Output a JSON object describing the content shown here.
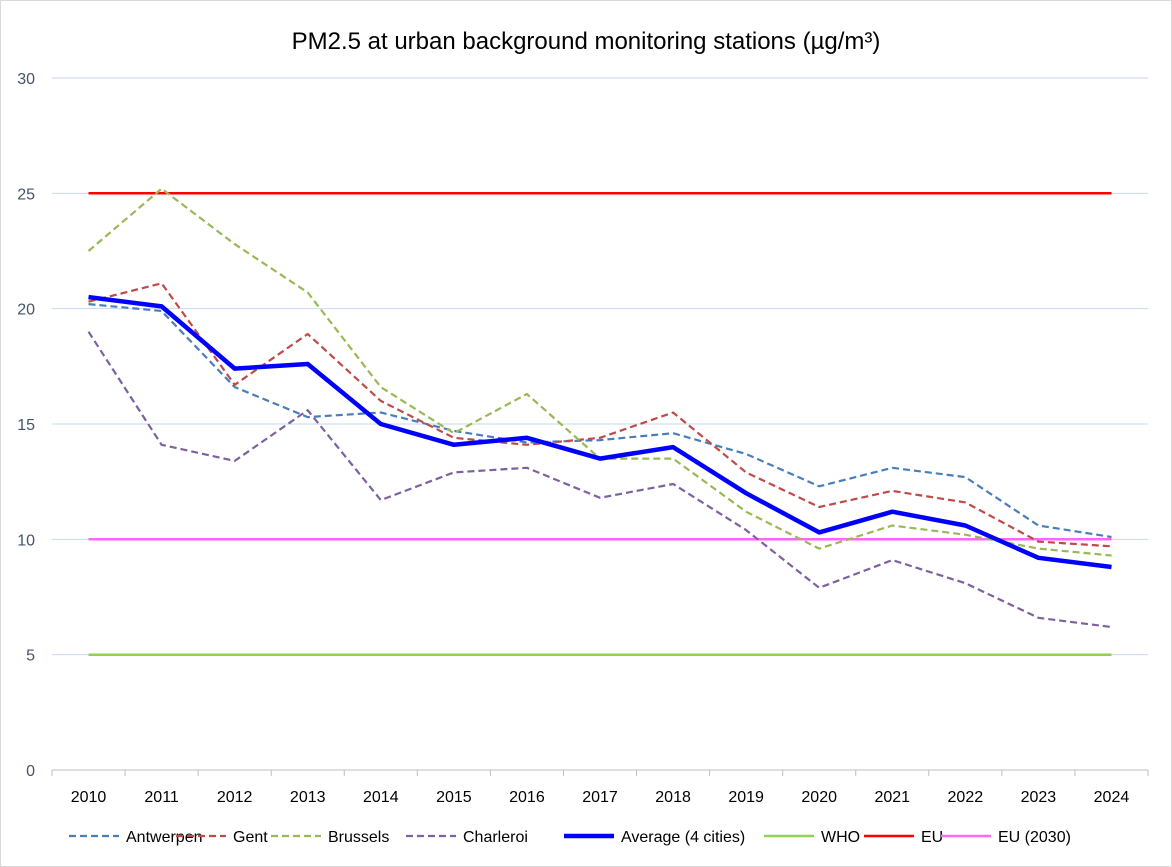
{
  "chart_data": {
    "type": "line",
    "title": "PM2.5 at urban background monitoring stations (µg/m³)",
    "xlabel": "",
    "ylabel": "",
    "categories": [
      "2010",
      "2011",
      "2012",
      "2013",
      "2014",
      "2015",
      "2016",
      "2017",
      "2018",
      "2019",
      "2020",
      "2021",
      "2022",
      "2023",
      "2024"
    ],
    "ylim": [
      0,
      30
    ],
    "yticks": [
      0,
      5,
      10,
      15,
      20,
      25,
      30
    ],
    "grid": true,
    "legend_position": "bottom",
    "series": [
      {
        "name": "Antwerpen",
        "color": "#4a7ebb",
        "dash": true,
        "width": 2.2,
        "values": [
          20.2,
          19.9,
          16.6,
          15.3,
          15.5,
          14.7,
          14.2,
          14.3,
          14.6,
          13.7,
          12.3,
          13.1,
          12.7,
          10.6,
          10.1
        ]
      },
      {
        "name": "Gent",
        "color": "#be4b48",
        "dash": true,
        "width": 2.2,
        "values": [
          20.3,
          21.1,
          16.7,
          18.9,
          16.0,
          14.4,
          14.1,
          14.4,
          15.5,
          12.9,
          11.4,
          12.1,
          11.6,
          9.9,
          9.7
        ]
      },
      {
        "name": "Brussels",
        "color": "#98b954",
        "dash": true,
        "width": 2.2,
        "values": [
          22.5,
          25.2,
          22.8,
          20.7,
          16.6,
          14.6,
          16.3,
          13.5,
          13.5,
          11.2,
          9.6,
          10.6,
          10.2,
          9.6,
          9.3
        ]
      },
      {
        "name": "Charleroi",
        "color": "#7d60a0",
        "dash": true,
        "width": 2.2,
        "values": [
          19.0,
          14.1,
          13.4,
          15.6,
          11.7,
          12.9,
          13.1,
          11.8,
          12.4,
          10.4,
          7.9,
          9.1,
          8.1,
          6.6,
          6.2
        ]
      },
      {
        "name": "Average (4 cities)",
        "color": "#0000ff",
        "dash": false,
        "width": 4.5,
        "values": [
          20.5,
          20.1,
          17.4,
          17.6,
          15.0,
          14.1,
          14.4,
          13.5,
          14.0,
          12.0,
          10.3,
          11.2,
          10.6,
          9.2,
          8.8
        ]
      },
      {
        "name": "WHO",
        "color": "#92d050",
        "dash": false,
        "width": 2.5,
        "values": [
          5,
          5,
          5,
          5,
          5,
          5,
          5,
          5,
          5,
          5,
          5,
          5,
          5,
          5,
          5
        ]
      },
      {
        "name": "EU",
        "color": "#ff0000",
        "dash": false,
        "width": 2.5,
        "values": [
          25,
          25,
          25,
          25,
          25,
          25,
          25,
          25,
          25,
          25,
          25,
          25,
          25,
          25,
          25
        ]
      },
      {
        "name": "EU (2030)",
        "color": "#ff66ff",
        "dash": false,
        "width": 2.5,
        "values": [
          10,
          10,
          10,
          10,
          10,
          10,
          10,
          10,
          10,
          10,
          10,
          10,
          10,
          10,
          10
        ]
      }
    ]
  }
}
